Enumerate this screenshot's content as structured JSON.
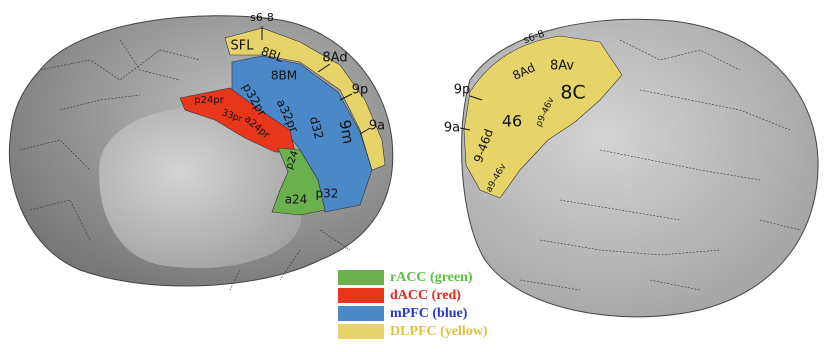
{
  "medial": {
    "labels": [
      "s6-8",
      "SFL",
      "8BL",
      "8Ad",
      "9p",
      "9a",
      "8BM",
      "p32pr",
      "a32pr",
      "d32",
      "9m",
      "p24pr",
      "33pr",
      "a24pr",
      "p24",
      "a24",
      "p32"
    ]
  },
  "lateral": {
    "labels": [
      "s6-8",
      "8Ad",
      "8Av",
      "9p",
      "9a",
      "8C",
      "46",
      "p9-46v",
      "9-46d",
      "a9-46v"
    ]
  },
  "legend": [
    {
      "label": "rACC (green)",
      "color": "#6ab04c",
      "text_color": "#5cbf45"
    },
    {
      "label": "dACC (red)",
      "color": "#e8361c",
      "text_color": "#e8261c"
    },
    {
      "label": "mPFC (blue)",
      "color": "#4a88c8",
      "text_color": "#2a36c8"
    },
    {
      "label": "DLPFC (yellow)",
      "color": "#e6d46a",
      "text_color": "#e0c040"
    }
  ]
}
